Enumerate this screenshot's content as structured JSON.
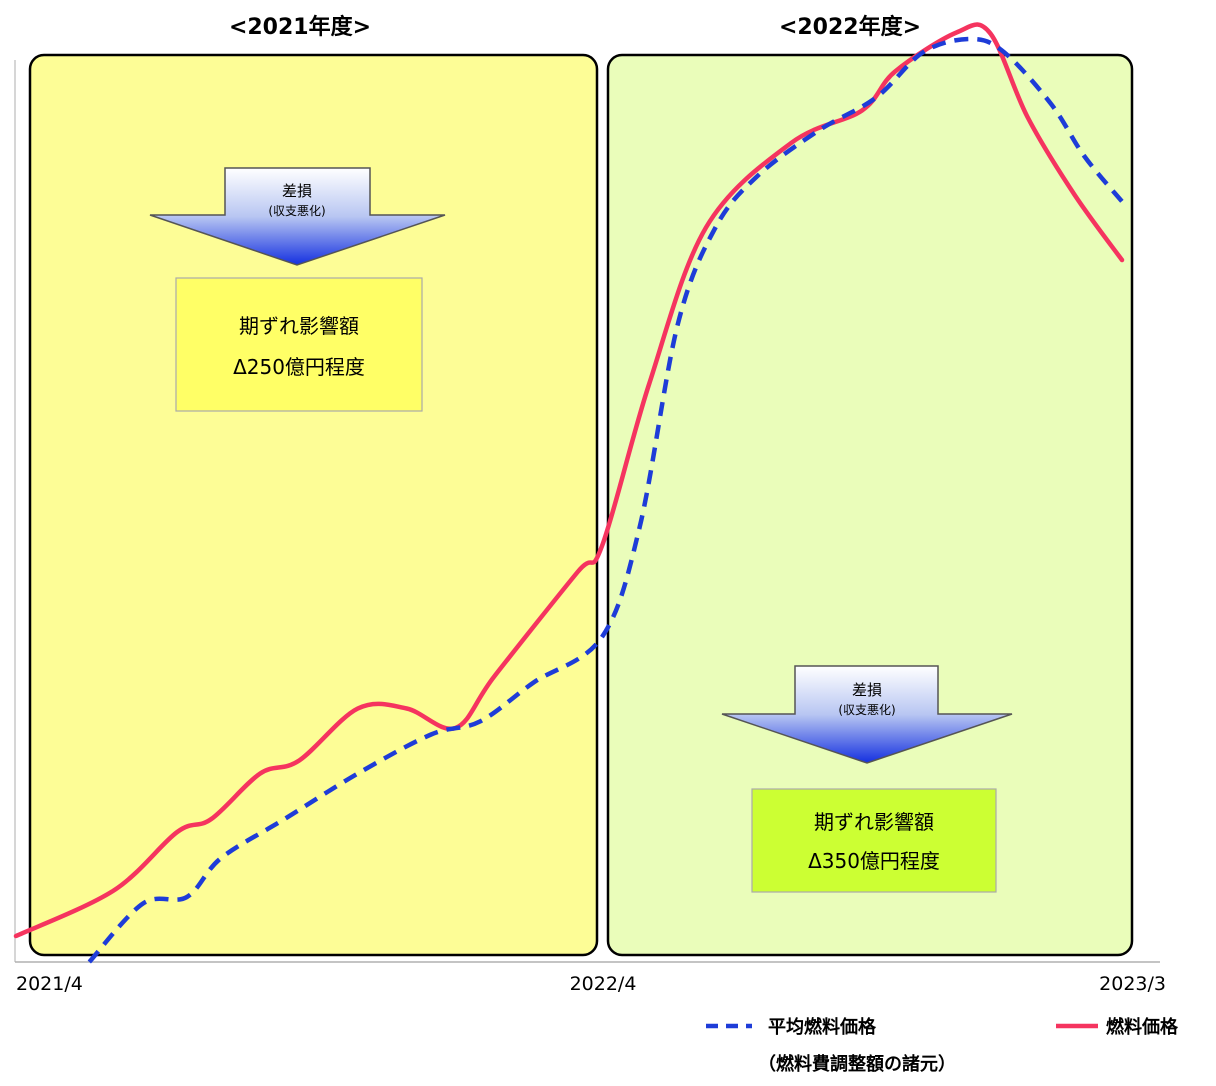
{
  "chart_data": {
    "type": "line",
    "periods": [
      {
        "label": "<2021年度>",
        "color": "#fdfd96"
      },
      {
        "label": "<2022年度>",
        "color": "#eafdba"
      }
    ],
    "x_tick_labels": [
      "2021/4",
      "2022/4",
      "2023/3"
    ],
    "x_tick_months": [
      0,
      12,
      23
    ],
    "series": [
      {
        "name": "燃料価格",
        "color": "#f5345f",
        "style": "solid",
        "x_months": [
          0,
          2,
          3.3,
          4,
          5,
          5.8,
          7,
          8,
          9,
          9.8,
          11.5,
          12,
          13,
          14.2,
          16,
          17.5,
          18.2,
          19.5,
          20.2,
          21,
          22,
          23
        ],
        "values": [
          4,
          11,
          20,
          22,
          29,
          31,
          39,
          39,
          36,
          44,
          60,
          64,
          89,
          113,
          126,
          131,
          137,
          143,
          143,
          130,
          118,
          108
        ]
      },
      {
        "name": "平均燃料価格",
        "color": "#1e3cd8",
        "style": "dashed",
        "x_months": [
          1.5,
          2.6,
          3.5,
          4.2,
          5.5,
          7,
          8.5,
          9.5,
          10.6,
          12,
          12.8,
          13.6,
          14.4,
          15.3,
          16.6,
          17.8,
          18.8,
          19.8,
          20.5,
          21.5,
          22.2,
          23
        ],
        "values": [
          0,
          9,
          10,
          16,
          22,
          29,
          35,
          37,
          43,
          50,
          67,
          98,
          113,
          121,
          128,
          133,
          140,
          142,
          140,
          132,
          124,
          117
        ]
      }
    ],
    "legend_order": [
      "平均燃料価格",
      "燃料価格"
    ],
    "legend_note": "（燃料費調整額の諸元）",
    "annotations": [
      {
        "arrow_label": "差損",
        "arrow_sublabel": "(収支悪化)",
        "box_line1": "期ずれ影響額",
        "box_line2": "Δ250億円程度",
        "box_color": "#ffff66"
      },
      {
        "arrow_label": "差損",
        "arrow_sublabel": "(収支悪化)",
        "box_line1": "期ずれ影響額",
        "box_line2": "Δ350億円程度",
        "box_color": "#ccff33"
      }
    ]
  }
}
